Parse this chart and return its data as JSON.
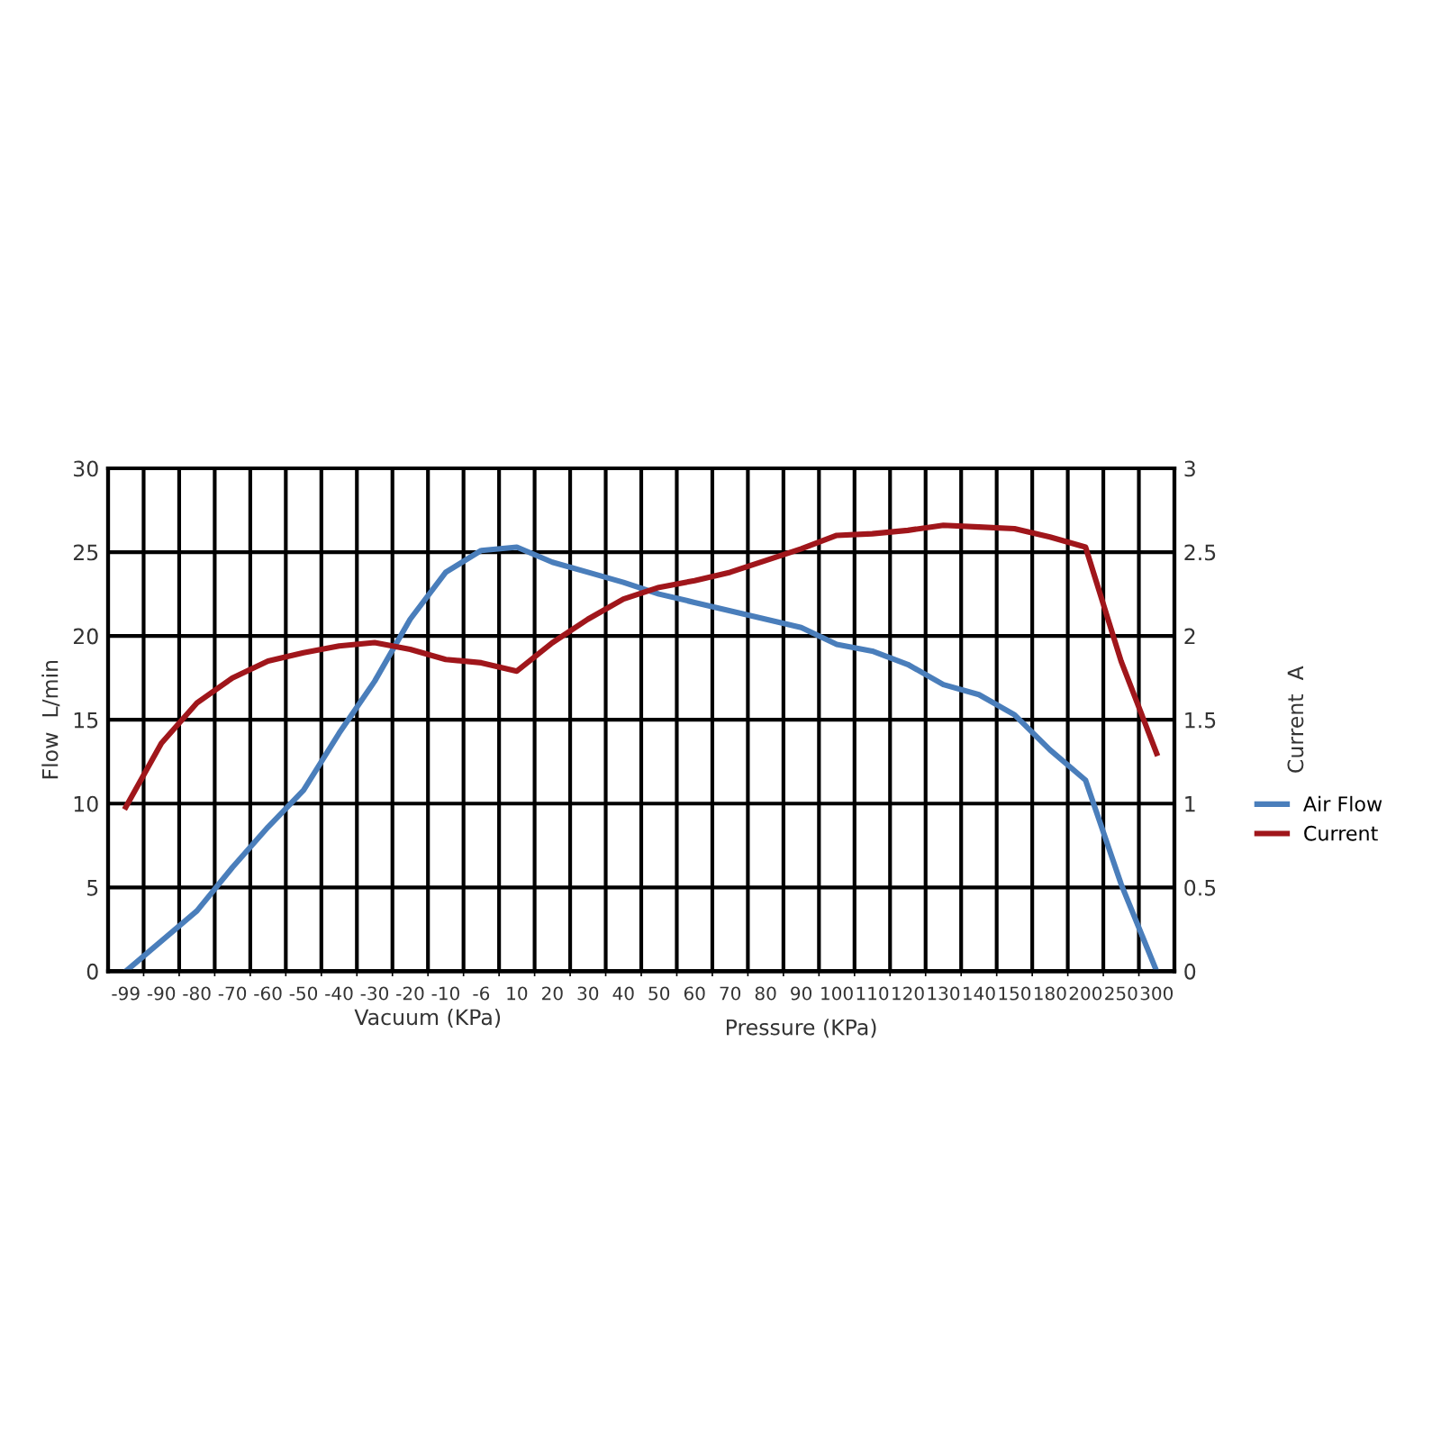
{
  "chart_data": {
    "type": "line",
    "categories": [
      "-99",
      "-90",
      "-80",
      "-70",
      "-60",
      "-50",
      "-40",
      "-30",
      "-20",
      "-10",
      "-6",
      "10",
      "20",
      "30",
      "40",
      "50",
      "60",
      "70",
      "80",
      "90",
      "100",
      "110",
      "120",
      "130",
      "140",
      "150",
      "180",
      "200",
      "250",
      "300"
    ],
    "series": [
      {
        "name": "Air Flow",
        "color": "#4a7ebb",
        "values": [
          0,
          1.8,
          3.6,
          6.2,
          8.6,
          10.8,
          14.2,
          17.3,
          21,
          23.8,
          25.1,
          25.3,
          24.4,
          23.8,
          23.2,
          22.5,
          22,
          21.5,
          21,
          20.5,
          19.5,
          19.1,
          18.3,
          17.1,
          16.5,
          15.3,
          13.2,
          11.4,
          5.2,
          0
        ]
      },
      {
        "name": "Current",
        "color": "#a0161b",
        "axis": "y2",
        "values": [
          0.98,
          1.36,
          1.6,
          1.75,
          1.85,
          1.9,
          1.94,
          1.96,
          1.92,
          1.86,
          1.84,
          1.79,
          1.96,
          2.1,
          2.22,
          2.29,
          2.33,
          2.38,
          2.45,
          2.52,
          2.6,
          2.61,
          2.63,
          2.66,
          2.65,
          2.64,
          2.59,
          2.53,
          1.85,
          1.3
        ]
      }
    ],
    "ylabel": "Flow  L/min",
    "y2label": "Current  A",
    "xlabel": "Vacuum (KPa)",
    "annotations": [
      "Pressure (KPa)"
    ],
    "ylim": [
      0,
      30
    ],
    "yticks": [
      0,
      5,
      10,
      15,
      20,
      25,
      30
    ],
    "y2lim": [
      0,
      3
    ],
    "y2ticks": [
      0,
      0.5,
      1,
      1.5,
      2,
      2.5,
      3
    ],
    "grid": true,
    "legend": "right",
    "marker": "none",
    "line_style": "solid"
  }
}
